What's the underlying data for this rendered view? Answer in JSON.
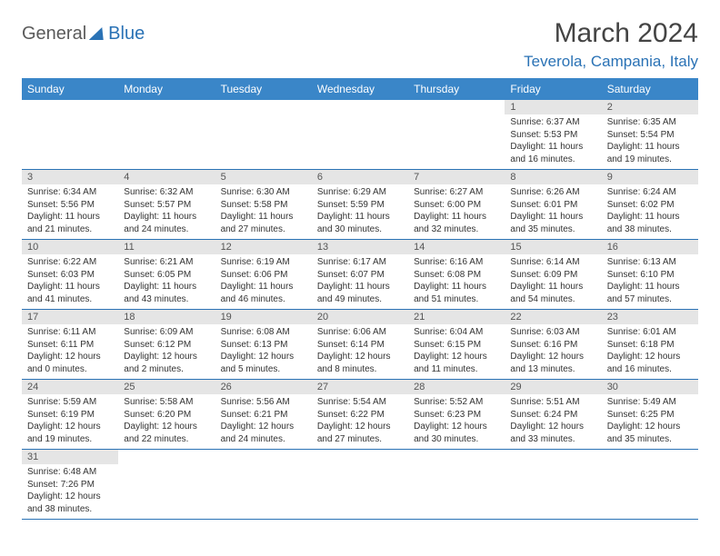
{
  "logo": {
    "general": "General",
    "blue": "Blue"
  },
  "title": "March 2024",
  "location": "Teverola, Campania, Italy",
  "colors": {
    "header_bg": "#3a86c8",
    "accent": "#2a72b5",
    "daynum_bg": "#e5e5e5",
    "text": "#333333"
  },
  "daysOfWeek": [
    "Sunday",
    "Monday",
    "Tuesday",
    "Wednesday",
    "Thursday",
    "Friday",
    "Saturday"
  ],
  "weeks": [
    [
      {
        "n": "",
        "sr": "",
        "ss": "",
        "dl": ""
      },
      {
        "n": "",
        "sr": "",
        "ss": "",
        "dl": ""
      },
      {
        "n": "",
        "sr": "",
        "ss": "",
        "dl": ""
      },
      {
        "n": "",
        "sr": "",
        "ss": "",
        "dl": ""
      },
      {
        "n": "",
        "sr": "",
        "ss": "",
        "dl": ""
      },
      {
        "n": "1",
        "sr": "Sunrise: 6:37 AM",
        "ss": "Sunset: 5:53 PM",
        "dl": "Daylight: 11 hours and 16 minutes."
      },
      {
        "n": "2",
        "sr": "Sunrise: 6:35 AM",
        "ss": "Sunset: 5:54 PM",
        "dl": "Daylight: 11 hours and 19 minutes."
      }
    ],
    [
      {
        "n": "3",
        "sr": "Sunrise: 6:34 AM",
        "ss": "Sunset: 5:56 PM",
        "dl": "Daylight: 11 hours and 21 minutes."
      },
      {
        "n": "4",
        "sr": "Sunrise: 6:32 AM",
        "ss": "Sunset: 5:57 PM",
        "dl": "Daylight: 11 hours and 24 minutes."
      },
      {
        "n": "5",
        "sr": "Sunrise: 6:30 AM",
        "ss": "Sunset: 5:58 PM",
        "dl": "Daylight: 11 hours and 27 minutes."
      },
      {
        "n": "6",
        "sr": "Sunrise: 6:29 AM",
        "ss": "Sunset: 5:59 PM",
        "dl": "Daylight: 11 hours and 30 minutes."
      },
      {
        "n": "7",
        "sr": "Sunrise: 6:27 AM",
        "ss": "Sunset: 6:00 PM",
        "dl": "Daylight: 11 hours and 32 minutes."
      },
      {
        "n": "8",
        "sr": "Sunrise: 6:26 AM",
        "ss": "Sunset: 6:01 PM",
        "dl": "Daylight: 11 hours and 35 minutes."
      },
      {
        "n": "9",
        "sr": "Sunrise: 6:24 AM",
        "ss": "Sunset: 6:02 PM",
        "dl": "Daylight: 11 hours and 38 minutes."
      }
    ],
    [
      {
        "n": "10",
        "sr": "Sunrise: 6:22 AM",
        "ss": "Sunset: 6:03 PM",
        "dl": "Daylight: 11 hours and 41 minutes."
      },
      {
        "n": "11",
        "sr": "Sunrise: 6:21 AM",
        "ss": "Sunset: 6:05 PM",
        "dl": "Daylight: 11 hours and 43 minutes."
      },
      {
        "n": "12",
        "sr": "Sunrise: 6:19 AM",
        "ss": "Sunset: 6:06 PM",
        "dl": "Daylight: 11 hours and 46 minutes."
      },
      {
        "n": "13",
        "sr": "Sunrise: 6:17 AM",
        "ss": "Sunset: 6:07 PM",
        "dl": "Daylight: 11 hours and 49 minutes."
      },
      {
        "n": "14",
        "sr": "Sunrise: 6:16 AM",
        "ss": "Sunset: 6:08 PM",
        "dl": "Daylight: 11 hours and 51 minutes."
      },
      {
        "n": "15",
        "sr": "Sunrise: 6:14 AM",
        "ss": "Sunset: 6:09 PM",
        "dl": "Daylight: 11 hours and 54 minutes."
      },
      {
        "n": "16",
        "sr": "Sunrise: 6:13 AM",
        "ss": "Sunset: 6:10 PM",
        "dl": "Daylight: 11 hours and 57 minutes."
      }
    ],
    [
      {
        "n": "17",
        "sr": "Sunrise: 6:11 AM",
        "ss": "Sunset: 6:11 PM",
        "dl": "Daylight: 12 hours and 0 minutes."
      },
      {
        "n": "18",
        "sr": "Sunrise: 6:09 AM",
        "ss": "Sunset: 6:12 PM",
        "dl": "Daylight: 12 hours and 2 minutes."
      },
      {
        "n": "19",
        "sr": "Sunrise: 6:08 AM",
        "ss": "Sunset: 6:13 PM",
        "dl": "Daylight: 12 hours and 5 minutes."
      },
      {
        "n": "20",
        "sr": "Sunrise: 6:06 AM",
        "ss": "Sunset: 6:14 PM",
        "dl": "Daylight: 12 hours and 8 minutes."
      },
      {
        "n": "21",
        "sr": "Sunrise: 6:04 AM",
        "ss": "Sunset: 6:15 PM",
        "dl": "Daylight: 12 hours and 11 minutes."
      },
      {
        "n": "22",
        "sr": "Sunrise: 6:03 AM",
        "ss": "Sunset: 6:16 PM",
        "dl": "Daylight: 12 hours and 13 minutes."
      },
      {
        "n": "23",
        "sr": "Sunrise: 6:01 AM",
        "ss": "Sunset: 6:18 PM",
        "dl": "Daylight: 12 hours and 16 minutes."
      }
    ],
    [
      {
        "n": "24",
        "sr": "Sunrise: 5:59 AM",
        "ss": "Sunset: 6:19 PM",
        "dl": "Daylight: 12 hours and 19 minutes."
      },
      {
        "n": "25",
        "sr": "Sunrise: 5:58 AM",
        "ss": "Sunset: 6:20 PM",
        "dl": "Daylight: 12 hours and 22 minutes."
      },
      {
        "n": "26",
        "sr": "Sunrise: 5:56 AM",
        "ss": "Sunset: 6:21 PM",
        "dl": "Daylight: 12 hours and 24 minutes."
      },
      {
        "n": "27",
        "sr": "Sunrise: 5:54 AM",
        "ss": "Sunset: 6:22 PM",
        "dl": "Daylight: 12 hours and 27 minutes."
      },
      {
        "n": "28",
        "sr": "Sunrise: 5:52 AM",
        "ss": "Sunset: 6:23 PM",
        "dl": "Daylight: 12 hours and 30 minutes."
      },
      {
        "n": "29",
        "sr": "Sunrise: 5:51 AM",
        "ss": "Sunset: 6:24 PM",
        "dl": "Daylight: 12 hours and 33 minutes."
      },
      {
        "n": "30",
        "sr": "Sunrise: 5:49 AM",
        "ss": "Sunset: 6:25 PM",
        "dl": "Daylight: 12 hours and 35 minutes."
      }
    ],
    [
      {
        "n": "31",
        "sr": "Sunrise: 6:48 AM",
        "ss": "Sunset: 7:26 PM",
        "dl": "Daylight: 12 hours and 38 minutes."
      },
      {
        "n": "",
        "sr": "",
        "ss": "",
        "dl": ""
      },
      {
        "n": "",
        "sr": "",
        "ss": "",
        "dl": ""
      },
      {
        "n": "",
        "sr": "",
        "ss": "",
        "dl": ""
      },
      {
        "n": "",
        "sr": "",
        "ss": "",
        "dl": ""
      },
      {
        "n": "",
        "sr": "",
        "ss": "",
        "dl": ""
      },
      {
        "n": "",
        "sr": "",
        "ss": "",
        "dl": ""
      }
    ]
  ]
}
